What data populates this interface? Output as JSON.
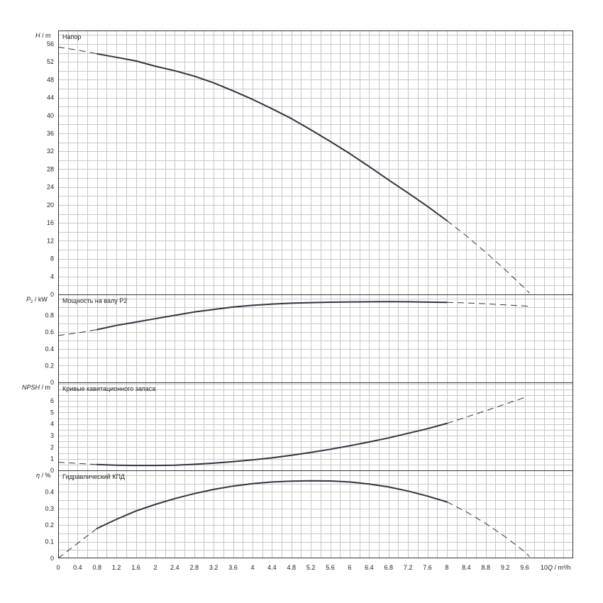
{
  "chart_data": {
    "type": "line",
    "x_axis": {
      "label_q": "Q",
      "label_unit": "m³/h",
      "range": [
        0,
        10.6
      ],
      "ticks": [
        "0",
        "0.4",
        "0.8",
        "1.2",
        "1.6",
        "2",
        "2.4",
        "2.8",
        "3.2",
        "3.6",
        "4",
        "4.4",
        "4.8",
        "5.2",
        "5.6",
        "6",
        "6.4",
        "6.8",
        "7.2",
        "7.6",
        "8",
        "8.4",
        "8.8",
        "9.2",
        "9.6",
        "10"
      ]
    },
    "panels": [
      {
        "id": "head",
        "title": "Напор",
        "ylabel_sym": "H",
        "ylabel_unit": "m",
        "ylim": [
          0,
          59
        ],
        "ticks": [
          0,
          4,
          8,
          12,
          16,
          20,
          24,
          28,
          32,
          36,
          40,
          44,
          48,
          52,
          56
        ],
        "tick_labels": [
          "0",
          "4",
          "8",
          "12",
          "16",
          "20",
          "24",
          "28",
          "32",
          "36",
          "40",
          "44",
          "48",
          "52",
          "56"
        ],
        "solid": {
          "x": [
            0.8,
            1.2,
            1.6,
            2.0,
            2.4,
            2.8,
            3.2,
            3.6,
            4.0,
            4.4,
            4.8,
            5.2,
            5.6,
            6.0,
            6.4,
            6.8,
            7.2,
            7.6,
            8.0
          ],
          "y": [
            53.8,
            53.0,
            52.2,
            51.0,
            50.0,
            48.8,
            47.3,
            45.5,
            43.6,
            41.5,
            39.3,
            36.8,
            34.2,
            31.5,
            28.6,
            25.6,
            22.7,
            19.7,
            16.5
          ]
        },
        "dashed": [
          {
            "x": [
              0.0,
              0.4,
              0.8
            ],
            "y": [
              55.3,
              54.6,
              53.8
            ]
          },
          {
            "x": [
              8.0,
              8.4,
              8.8,
              9.2,
              9.6,
              9.7
            ],
            "y": [
              16.5,
              13.1,
              9.4,
              5.5,
              1.4,
              0.3
            ]
          }
        ]
      },
      {
        "id": "power",
        "title": "Мощность на валу P2",
        "ylabel_sym": "P",
        "ylabel_sub": "2",
        "ylabel_unit": "kW",
        "ylim": [
          0,
          1.05
        ],
        "ticks": [
          0,
          0.2,
          0.4,
          0.6,
          0.8
        ],
        "tick_labels": [
          "0",
          "0.2",
          "0.4",
          "0.6",
          "0.8"
        ],
        "solid": {
          "x": [
            0.8,
            1.2,
            1.6,
            2.0,
            2.4,
            2.8,
            3.2,
            3.6,
            4.0,
            4.4,
            4.8,
            5.2,
            5.6,
            6.0,
            6.4,
            6.8,
            7.2,
            7.6,
            8.0
          ],
          "y": [
            0.63,
            0.68,
            0.72,
            0.76,
            0.8,
            0.84,
            0.87,
            0.9,
            0.92,
            0.935,
            0.945,
            0.952,
            0.957,
            0.96,
            0.962,
            0.963,
            0.962,
            0.958,
            0.955
          ]
        },
        "dashed": [
          {
            "x": [
              0.0,
              0.4,
              0.8
            ],
            "y": [
              0.56,
              0.59,
              0.63
            ]
          },
          {
            "x": [
              8.0,
              8.4,
              8.8,
              9.2,
              9.6,
              9.7
            ],
            "y": [
              0.955,
              0.948,
              0.938,
              0.925,
              0.912,
              0.908
            ]
          }
        ]
      },
      {
        "id": "npsh",
        "title": "Кривые кавитационного запаса",
        "ylabel_sym": "NPSH",
        "ylabel_unit": "m",
        "ylim": [
          0,
          7.6
        ],
        "ticks": [
          0,
          1,
          2,
          3,
          4,
          5,
          6
        ],
        "tick_labels": [
          "0",
          "1",
          "2",
          "3",
          "4",
          "5",
          "6"
        ],
        "solid": {
          "x": [
            0.8,
            1.2,
            1.6,
            2.0,
            2.4,
            2.8,
            3.2,
            3.6,
            4.0,
            4.4,
            4.8,
            5.2,
            5.6,
            6.0,
            6.4,
            6.8,
            7.2,
            7.6,
            8.0
          ],
          "y": [
            0.5,
            0.45,
            0.42,
            0.42,
            0.45,
            0.52,
            0.62,
            0.75,
            0.9,
            1.08,
            1.3,
            1.55,
            1.82,
            2.12,
            2.45,
            2.8,
            3.2,
            3.6,
            4.05
          ]
        },
        "dashed": [
          {
            "x": [
              0.0,
              0.4,
              0.8
            ],
            "y": [
              0.7,
              0.6,
              0.5
            ]
          },
          {
            "x": [
              8.0,
              8.4,
              8.8,
              9.2,
              9.6
            ],
            "y": [
              4.05,
              4.6,
              5.15,
              5.72,
              6.3
            ]
          }
        ]
      },
      {
        "id": "efficiency",
        "title": "Гидравлический КПД",
        "ylabel_sym": "η",
        "ylabel_unit": "%",
        "ylim": [
          0,
          0.53
        ],
        "ticks": [
          0,
          0.1,
          0.2,
          0.3,
          0.4
        ],
        "tick_labels": [
          "0",
          "0.1",
          "0.2",
          "0.3",
          "0.4"
        ],
        "solid": {
          "x": [
            0.8,
            1.2,
            1.6,
            2.0,
            2.4,
            2.8,
            3.2,
            3.6,
            4.0,
            4.4,
            4.8,
            5.2,
            5.6,
            6.0,
            6.4,
            6.8,
            7.2,
            7.6,
            8.0
          ],
          "y": [
            0.18,
            0.235,
            0.285,
            0.325,
            0.36,
            0.39,
            0.415,
            0.435,
            0.45,
            0.46,
            0.465,
            0.467,
            0.466,
            0.46,
            0.448,
            0.43,
            0.405,
            0.375,
            0.34
          ]
        },
        "dashed": [
          {
            "x": [
              0.0,
              0.4,
              0.8
            ],
            "y": [
              0.0,
              0.09,
              0.18
            ]
          },
          {
            "x": [
              8.0,
              8.4,
              8.8,
              9.2,
              9.6,
              9.7
            ],
            "y": [
              0.34,
              0.28,
              0.21,
              0.13,
              0.04,
              0.01
            ]
          }
        ]
      }
    ]
  }
}
